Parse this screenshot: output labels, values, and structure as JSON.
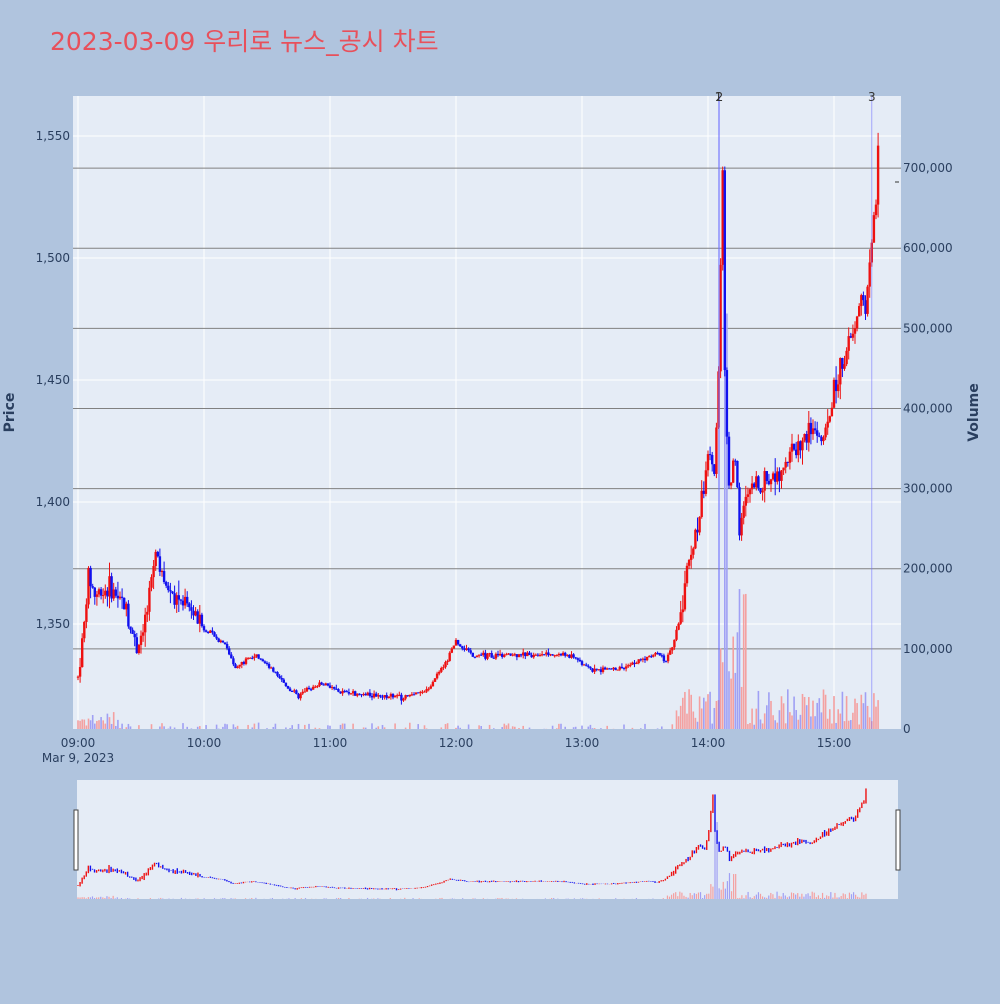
{
  "title": "2023-03-09 우리로 뉴스_공시 차트",
  "chart_data": {
    "type": "candlestick",
    "title": "2023-03-09 우리로 뉴스_공시 차트",
    "ylabel_left": "Price",
    "ylabel_right": "Volume",
    "x_ticks": [
      "09:00",
      "10:00",
      "11:00",
      "12:00",
      "13:00",
      "14:00",
      "15:00"
    ],
    "x_date_label": "Mar 9, 2023",
    "price_ticks": [
      "1,350",
      "1,400",
      "1,450",
      "1,500",
      "1,550"
    ],
    "price_range": [
      1305,
      1567
    ],
    "volume_ticks": [
      "0",
      "100,000",
      "200,000",
      "300,000",
      "400,000",
      "500,000",
      "600,000",
      "700,000"
    ],
    "volume_range": [
      0,
      795000
    ],
    "annotations": [
      {
        "time": "14:05",
        "label": "1"
      },
      {
        "time": "14:05",
        "label": "2"
      },
      {
        "time": "15:18",
        "label": "3"
      }
    ],
    "colors": {
      "up": "#ee1111",
      "down": "#1111ee",
      "volume_up": "#f4a0a0",
      "volume_down": "#a0a0f4",
      "grid": "#ffffff",
      "background": "#e5ecf6",
      "hline": "#808080"
    },
    "price_path": [
      [
        "09:00",
        1328
      ],
      [
        "09:03",
        1350
      ],
      [
        "09:05",
        1370
      ],
      [
        "09:08",
        1362
      ],
      [
        "09:15",
        1365
      ],
      [
        "09:22",
        1358
      ],
      [
        "09:28",
        1340
      ],
      [
        "09:33",
        1355
      ],
      [
        "09:37",
        1380
      ],
      [
        "09:42",
        1365
      ],
      [
        "09:50",
        1360
      ],
      [
        "10:00",
        1348
      ],
      [
        "10:10",
        1342
      ],
      [
        "10:15",
        1332
      ],
      [
        "10:25",
        1338
      ],
      [
        "10:35",
        1328
      ],
      [
        "10:45",
        1320
      ],
      [
        "10:55",
        1326
      ],
      [
        "11:05",
        1322
      ],
      [
        "11:20",
        1321
      ],
      [
        "11:35",
        1320
      ],
      [
        "11:45",
        1322
      ],
      [
        "11:55",
        1334
      ],
      [
        "12:00",
        1343
      ],
      [
        "12:08",
        1337
      ],
      [
        "12:20",
        1337
      ],
      [
        "12:40",
        1338
      ],
      [
        "12:55",
        1337
      ],
      [
        "13:05",
        1331
      ],
      [
        "13:20",
        1332
      ],
      [
        "13:35",
        1338
      ],
      [
        "13:40",
        1335
      ],
      [
        "13:45",
        1345
      ],
      [
        "13:50",
        1372
      ],
      [
        "13:55",
        1390
      ],
      [
        "14:00",
        1420
      ],
      [
        "14:03",
        1410
      ],
      [
        "14:05",
        1455
      ],
      [
        "14:06",
        1500
      ],
      [
        "14:07",
        1537
      ],
      [
        "14:08",
        1450
      ],
      [
        "14:10",
        1405
      ],
      [
        "14:13",
        1420
      ],
      [
        "14:15",
        1390
      ],
      [
        "14:20",
        1405
      ],
      [
        "14:30",
        1410
      ],
      [
        "14:40",
        1420
      ],
      [
        "14:50",
        1430
      ],
      [
        "14:55",
        1425
      ],
      [
        "15:00",
        1445
      ],
      [
        "15:05",
        1460
      ],
      [
        "15:10",
        1470
      ],
      [
        "15:13",
        1485
      ],
      [
        "15:15",
        1480
      ],
      [
        "15:18",
        1505
      ],
      [
        "15:20",
        1525
      ],
      [
        "15:21",
        1548
      ]
    ]
  }
}
